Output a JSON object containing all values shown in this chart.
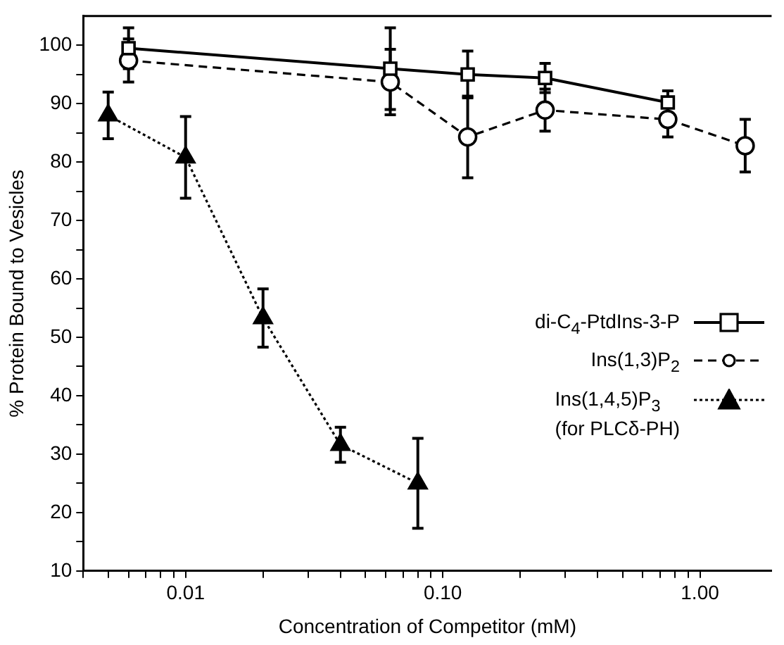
{
  "chart_data": {
    "type": "line",
    "xlabel": "Concentration of Competitor (mM)",
    "ylabel": "% Protein Bound to Vesicles",
    "log": "x",
    "xlim": [
      0.004,
      1.9
    ],
    "ylim": [
      10,
      105
    ],
    "xticks": [
      {
        "value": 0.004,
        "label": null
      },
      {
        "value": 0.005,
        "label": null
      },
      {
        "value": 0.006,
        "label": null
      },
      {
        "value": 0.007,
        "label": null
      },
      {
        "value": 0.008,
        "label": null
      },
      {
        "value": 0.009,
        "label": null
      },
      0.01,
      {
        "value": 0.02,
        "label": null
      },
      {
        "value": 0.03,
        "label": null
      },
      {
        "value": 0.04,
        "label": null
      },
      {
        "value": 0.05,
        "label": null
      },
      {
        "value": 0.06,
        "label": null
      },
      {
        "value": 0.07,
        "label": null
      },
      {
        "value": 0.08,
        "label": null
      },
      {
        "value": 0.09,
        "label": null
      },
      {
        "value": 0.1,
        "label": "0.10"
      },
      {
        "value": 0.2,
        "label": null
      },
      {
        "value": 0.3,
        "label": null
      },
      {
        "value": 0.4,
        "label": null
      },
      {
        "value": 0.5,
        "label": null
      },
      {
        "value": 0.6,
        "label": null
      },
      {
        "value": 0.7,
        "label": null
      },
      {
        "value": 0.8,
        "label": null
      },
      {
        "value": 0.9,
        "label": null
      },
      {
        "value": 1,
        "label": "1.00"
      }
    ],
    "yticks": [
      10,
      {
        "value": 15,
        "label": null
      },
      20,
      {
        "value": 25,
        "label": null
      },
      30,
      {
        "value": 35,
        "label": null
      },
      40,
      {
        "value": 45,
        "label": null
      },
      50,
      {
        "value": 55,
        "label": null
      },
      60,
      {
        "value": 65,
        "label": null
      },
      70,
      {
        "value": 75,
        "label": null
      },
      80,
      {
        "value": 85,
        "label": null
      },
      90,
      {
        "value": 95,
        "label": null
      },
      100
    ],
    "grid": false,
    "legend": "right",
    "series": [
      {
        "name": "di-C$_{4}$-PtdIns-3-P",
        "color": "#000000",
        "marker": "square",
        "line_style": "solid",
        "x": [
          0.006,
          0.0625,
          0.125,
          0.25,
          0.75
        ],
        "values": [
          99.5,
          96,
          95,
          94.4,
          90.2
        ],
        "errors": [
          3.5,
          7,
          4,
          2.5,
          2
        ]
      },
      {
        "name": "Ins(1,3)P$_{2}$",
        "color": "#000000",
        "marker": "circle",
        "line_style": "dashed",
        "x": [
          0.006,
          0.0625,
          0.125,
          0.25,
          0.75,
          1.5
        ],
        "values": [
          97.4,
          93.7,
          84.3,
          88.9,
          87.3,
          82.8
        ],
        "errors": [
          3.7,
          5.6,
          7,
          3.6,
          3,
          4.5
        ]
      },
      {
        "name": "Ins(1,4,5)P$_{3}$\n(for PLCδ-PH)",
        "color": "#000000",
        "marker": "triangle",
        "line_style": "dotted",
        "x": [
          0.005,
          0.01,
          0.02,
          0.04,
          0.08
        ],
        "values": [
          88,
          80.8,
          53.3,
          31.6,
          25
        ],
        "errors": [
          4,
          7,
          5,
          3,
          7.7
        ]
      }
    ]
  }
}
